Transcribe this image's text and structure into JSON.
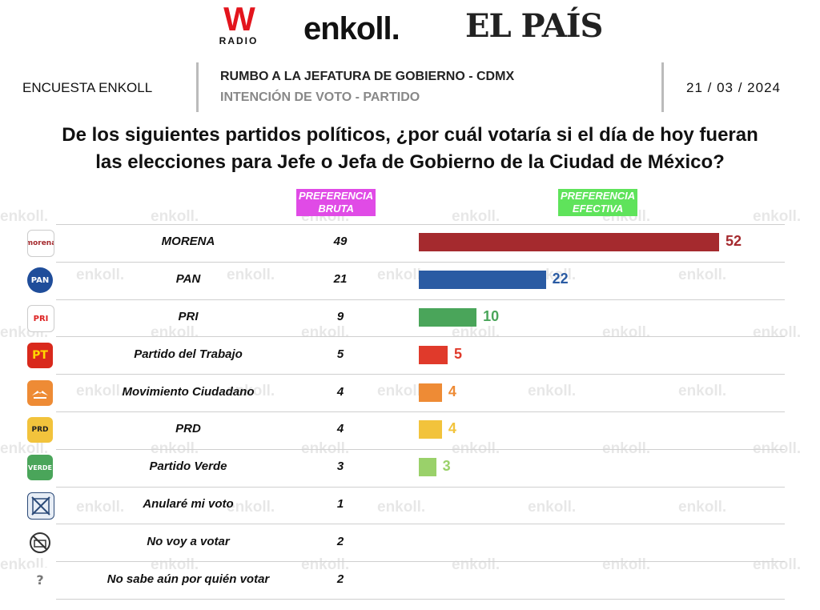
{
  "logos": {
    "wradio_main": "W",
    "wradio_sub": "RADIO",
    "enkoll": "enkoll.",
    "elpais": "EL PAÍS"
  },
  "header": {
    "left": "ENCUESTA ENKOLL",
    "title": "RUMBO A LA JEFATURA DE GOBIERNO - CDMX",
    "subtitle": "INTENCIÓN DE VOTO - PARTIDO",
    "date": "21 / 03 / 2024"
  },
  "question_line1": "De los siguientes partidos políticos, ¿por cuál votaría si el día de hoy fueran",
  "question_line2": "las elecciones para Jefe o Jefa de Gobierno de la Ciudad de México?",
  "columns": {
    "bruta_line1": "PREFERENCIA",
    "bruta_line2": "BRUTA",
    "efectiva_line1": "PREFERENCIA",
    "efectiva_line2": "EFECTIVA"
  },
  "watermark": "enkoll.",
  "colors": {
    "bruta_header": "#e04be6",
    "efectiva_header": "#5fe35b"
  },
  "chart_data": {
    "type": "bar",
    "orientation": "horizontal",
    "categories": [
      "MORENA",
      "PAN",
      "PRI",
      "Partido del Trabajo",
      "Movimiento Ciudadano",
      "PRD",
      "Partido Verde",
      "Anularé mi voto",
      "No voy a votar",
      "No sabe aún por quién votar"
    ],
    "series": [
      {
        "name": "PREFERENCIA BRUTA",
        "values": [
          49,
          21,
          9,
          5,
          4,
          4,
          3,
          1,
          2,
          2
        ]
      },
      {
        "name": "PREFERENCIA EFECTIVA",
        "values": [
          52,
          22,
          10,
          5,
          4,
          4,
          3,
          null,
          null,
          null
        ]
      }
    ],
    "bar_colors": [
      "#a52a2e",
      "#2a5ba3",
      "#4aa55a",
      "#e03a2b",
      "#ee8b35",
      "#f2c33c",
      "#9ad16a"
    ],
    "value_colors": [
      "#a52a2e",
      "#2a5ba3",
      "#4aa55a",
      "#e03a2b",
      "#ee8b35",
      "#f2c33c",
      "#9ad16a"
    ],
    "icons": [
      "morena-logo-icon",
      "pan-logo-icon",
      "pri-logo-icon",
      "pt-logo-icon",
      "mc-logo-icon",
      "prd-logo-icon",
      "verde-logo-icon",
      "null-vote-icon",
      "no-vote-icon",
      "question-icon"
    ],
    "icon_text": [
      "morena",
      "PAN",
      "PRI",
      "PT",
      "",
      "PRD",
      "VERDE",
      "",
      "",
      "?"
    ]
  }
}
